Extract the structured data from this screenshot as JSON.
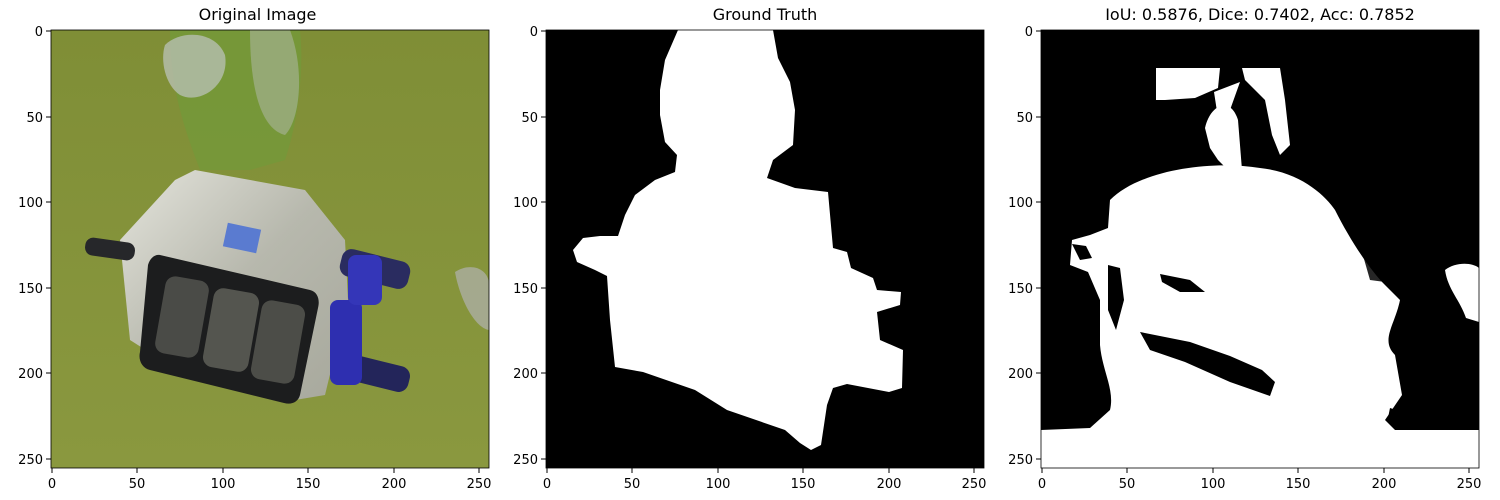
{
  "figure": {
    "panels": [
      {
        "title": "Original Image",
        "image_desc": "underwater ROV camera housing in green water",
        "x_ticks": [
          "0",
          "50",
          "100",
          "150",
          "200",
          "250"
        ],
        "y_ticks": [
          "0",
          "50",
          "100",
          "150",
          "200",
          "250"
        ]
      },
      {
        "title": "Ground Truth",
        "image_desc": "binary mask of ROV",
        "x_ticks": [
          "0",
          "50",
          "100",
          "150",
          "200",
          "250"
        ],
        "y_ticks": [
          "0",
          "50",
          "100",
          "150",
          "200",
          "250"
        ]
      },
      {
        "title": "IoU: 0.5876, Dice: 0.7402, Acc: 0.7852",
        "image_desc": "predicted binary mask",
        "x_ticks": [
          "0",
          "50",
          "100",
          "150",
          "200",
          "250"
        ],
        "y_ticks": [
          "0",
          "50",
          "100",
          "150",
          "200",
          "250"
        ]
      }
    ],
    "colors": {
      "water": "#7d8c35",
      "mask_fg": "#ffffff",
      "mask_bg": "#000000"
    }
  }
}
